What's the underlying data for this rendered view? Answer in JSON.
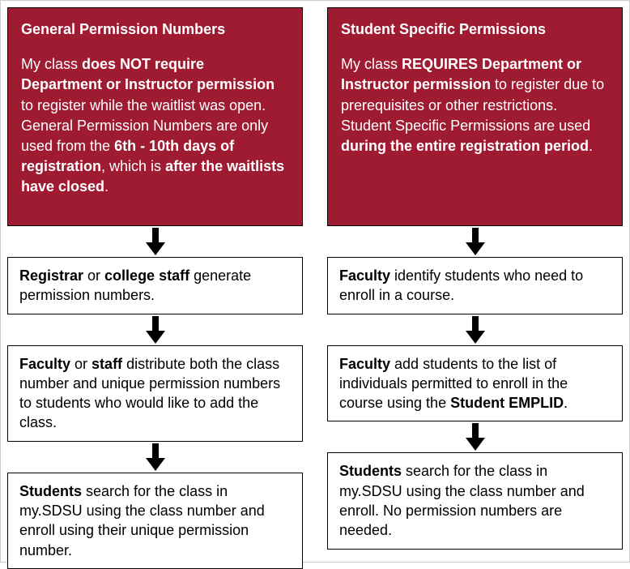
{
  "colors": {
    "header_bg": "#9e1b32",
    "header_text": "#ffffff",
    "box_border": "#000000",
    "box_bg": "#ffffff",
    "box_text": "#000000",
    "arrow_fill": "#000000",
    "page_bg": "#ffffff",
    "page_border": "#cccccc"
  },
  "typography": {
    "font_family": "Arial, Helvetica, sans-serif",
    "body_fontsize": 18,
    "title_fontsize": 18,
    "line_height": 1.4
  },
  "layout": {
    "type": "flowchart",
    "columns": 2,
    "column_gap": 30,
    "box_padding": 14,
    "arrow_height": 34
  },
  "left": {
    "title": "General Permission Numbers",
    "header_segments": [
      {
        "text": "My class ",
        "bold": false
      },
      {
        "text": "does NOT require Department or Instructor permission",
        "bold": true
      },
      {
        "text": " to register while the waitlist was open. General Permission Numbers are only used from the ",
        "bold": false
      },
      {
        "text": "6th - 10th days of registration",
        "bold": true
      },
      {
        "text": ", which is ",
        "bold": false
      },
      {
        "text": "after the waitlists have closed",
        "bold": true
      },
      {
        "text": ".",
        "bold": false
      }
    ],
    "steps": [
      [
        {
          "text": "Registrar",
          "bold": true
        },
        {
          "text": " or ",
          "bold": false
        },
        {
          "text": "college staff",
          "bold": true
        },
        {
          "text": " generate permission numbers.",
          "bold": false
        }
      ],
      [
        {
          "text": "Faculty",
          "bold": true
        },
        {
          "text": " or ",
          "bold": false
        },
        {
          "text": "staff",
          "bold": true
        },
        {
          "text": " distribute both the class number and unique permission numbers to students who would like to add the class.",
          "bold": false
        }
      ],
      [
        {
          "text": "Students",
          "bold": true
        },
        {
          "text": " search for the class in my.SDSU using the class number and enroll using their unique permission number.",
          "bold": false
        }
      ]
    ]
  },
  "right": {
    "title": "Student Specific Permissions",
    "header_segments": [
      {
        "text": "My class ",
        "bold": false
      },
      {
        "text": "REQUIRES Department or Instructor permission",
        "bold": true
      },
      {
        "text": " to register due to prerequisites or other restrictions. Student Specific Permissions are used ",
        "bold": false
      },
      {
        "text": "during the entire registration period",
        "bold": true
      },
      {
        "text": ".",
        "bold": false
      }
    ],
    "steps": [
      [
        {
          "text": "Faculty",
          "bold": true
        },
        {
          "text": " identify students who need to enroll in a course.",
          "bold": false
        }
      ],
      [
        {
          "text": "Faculty",
          "bold": true
        },
        {
          "text": " add students to the list of individuals permitted to enroll in the course using the ",
          "bold": false
        },
        {
          "text": "Student EMPLID",
          "bold": true
        },
        {
          "text": ".",
          "bold": false
        }
      ],
      [
        {
          "text": "Students",
          "bold": true
        },
        {
          "text": " search for the class in my.SDSU using the class number and enroll. No permission numbers are needed.",
          "bold": false
        }
      ]
    ]
  }
}
